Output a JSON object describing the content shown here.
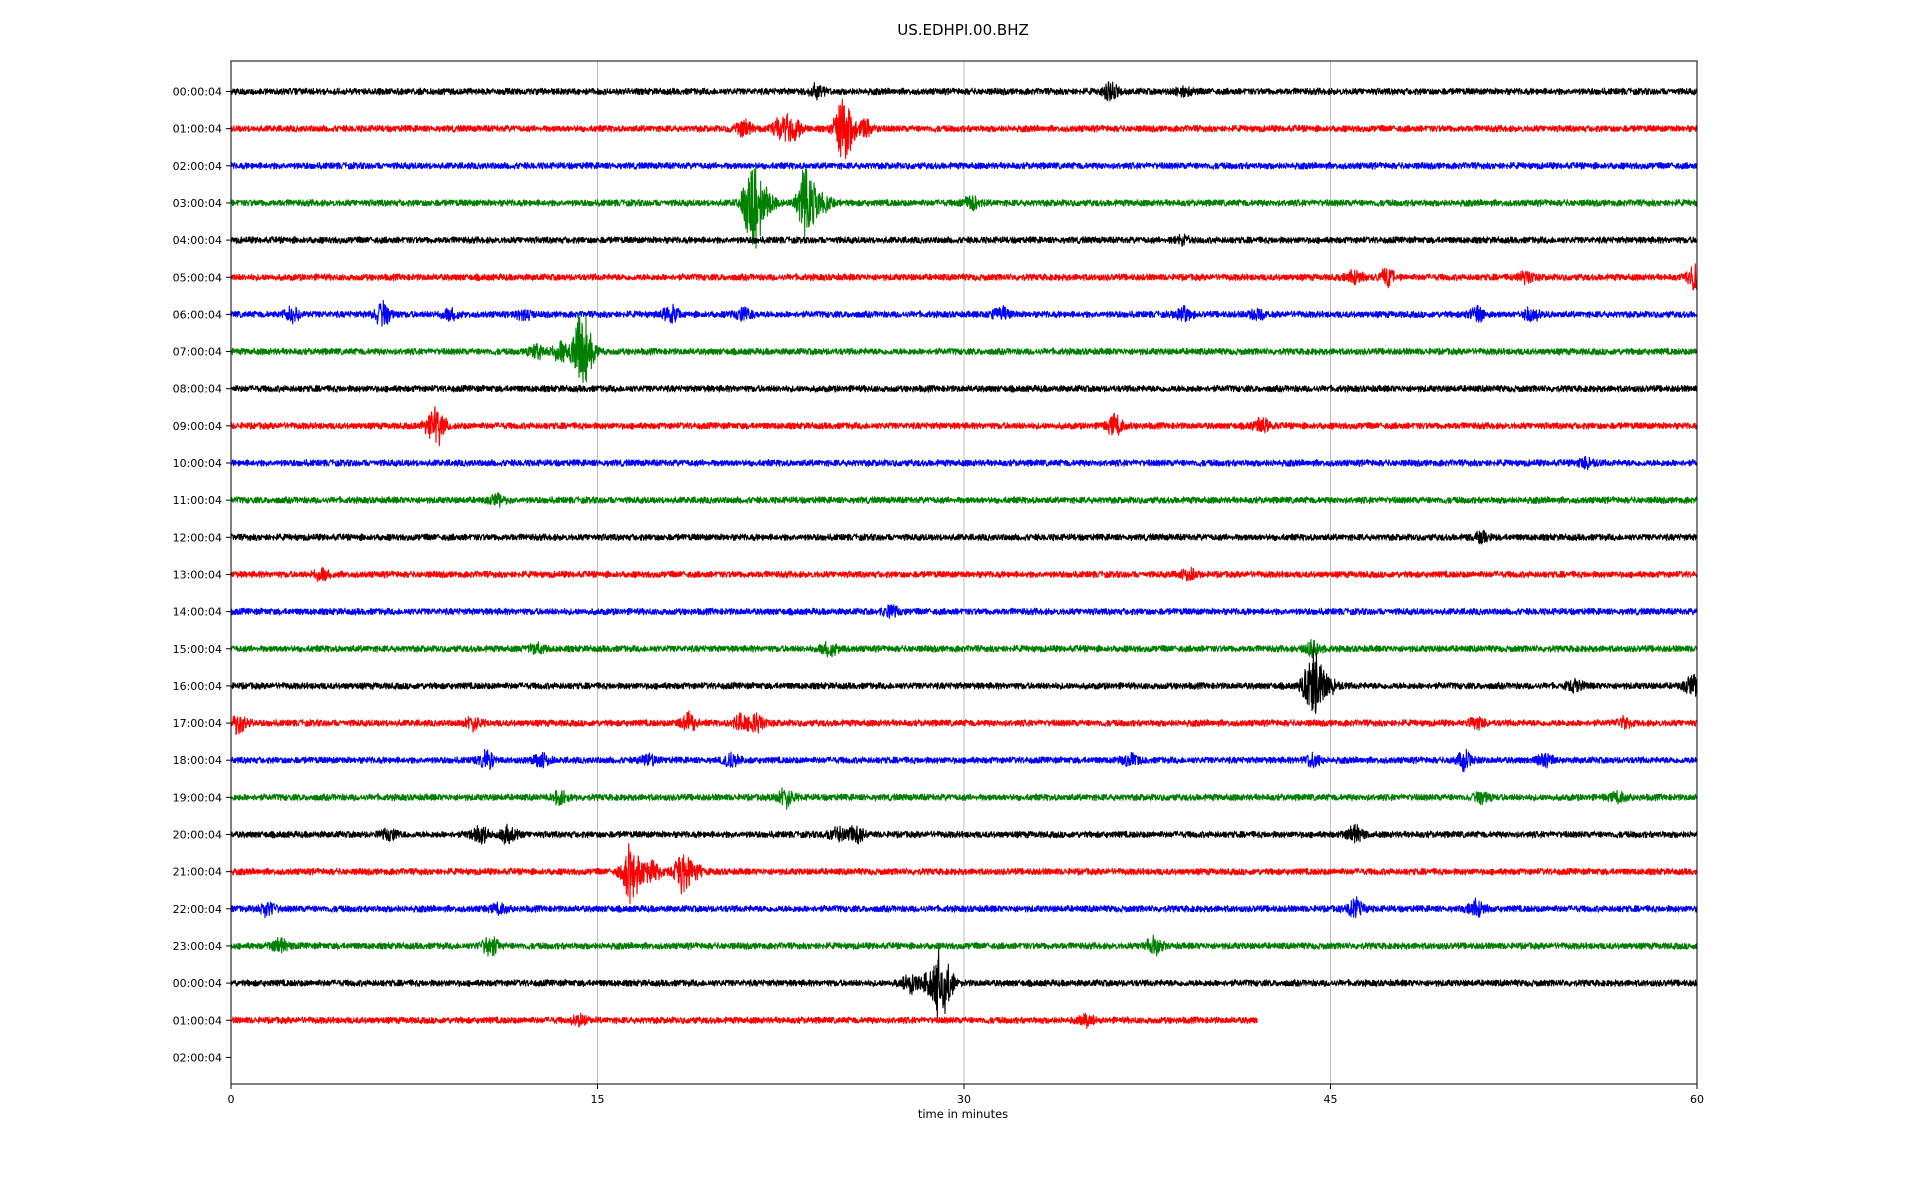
{
  "chart_data": {
    "type": "line",
    "title": "US.EDHPI.00.BHZ",
    "xlabel": "time in minutes",
    "ylabel": "",
    "xlim": [
      0,
      60
    ],
    "x_ticks": [
      "0",
      "15",
      "30",
      "45",
      "60"
    ],
    "row_labels": [
      "00:00:04",
      "01:00:04",
      "02:00:04",
      "03:00:04",
      "04:00:04",
      "05:00:04",
      "06:00:04",
      "07:00:04",
      "08:00:04",
      "09:00:04",
      "10:00:04",
      "11:00:04",
      "12:00:04",
      "13:00:04",
      "14:00:04",
      "15:00:04",
      "16:00:04",
      "17:00:04",
      "18:00:04",
      "19:00:04",
      "20:00:04",
      "21:00:04",
      "22:00:04",
      "23:00:04",
      "00:00:04",
      "01:00:04",
      "02:00:04"
    ],
    "grid": "vertical at major ticks",
    "series_colors": [
      "#000000",
      "#ff0000",
      "#0000ff",
      "#008000"
    ],
    "traces": [
      {
        "end": 60,
        "events": [
          [
            24,
            0.4
          ],
          [
            36,
            0.5
          ],
          [
            39,
            0.3
          ]
        ]
      },
      {
        "end": 60,
        "events": [
          [
            21,
            0.5
          ],
          [
            22.5,
            0.6
          ],
          [
            23,
            0.8
          ],
          [
            25,
            1.4
          ],
          [
            25.3,
            0.9
          ],
          [
            26,
            0.5
          ]
        ]
      },
      {
        "end": 60,
        "events": []
      },
      {
        "end": 60,
        "events": [
          [
            21.2,
            1.3
          ],
          [
            21.5,
            2.2
          ],
          [
            22,
            0.5
          ],
          [
            23.5,
            1.8
          ],
          [
            23.8,
            0.9
          ],
          [
            24.3,
            0.4
          ],
          [
            30.3,
            0.4
          ]
        ]
      },
      {
        "end": 60,
        "events": [
          [
            39,
            0.3
          ]
        ]
      },
      {
        "end": 60,
        "events": [
          [
            46,
            0.4
          ],
          [
            47.3,
            0.5
          ],
          [
            53,
            0.3
          ],
          [
            59.9,
            0.8
          ]
        ]
      },
      {
        "end": 60,
        "events": [
          [
            2.5,
            0.4
          ],
          [
            6.2,
            0.7
          ],
          [
            9,
            0.3
          ],
          [
            12,
            0.3
          ],
          [
            18,
            0.5
          ],
          [
            21,
            0.4
          ],
          [
            31.5,
            0.4
          ],
          [
            39,
            0.4
          ],
          [
            42,
            0.3
          ],
          [
            51,
            0.4
          ],
          [
            53.2,
            0.4
          ]
        ]
      },
      {
        "end": 60,
        "events": [
          [
            12.5,
            0.4
          ],
          [
            13.5,
            0.6
          ],
          [
            14.3,
            2.2
          ],
          [
            14.6,
            0.9
          ]
        ]
      },
      {
        "end": 60,
        "events": []
      },
      {
        "end": 60,
        "events": [
          [
            8.2,
            0.6
          ],
          [
            8.5,
            0.9
          ],
          [
            36.2,
            0.6
          ],
          [
            42.2,
            0.4
          ]
        ]
      },
      {
        "end": 60,
        "events": [
          [
            55.5,
            0.3
          ]
        ]
      },
      {
        "end": 60,
        "events": [
          [
            10.9,
            0.3
          ]
        ]
      },
      {
        "end": 60,
        "events": [
          [
            51.2,
            0.3
          ]
        ]
      },
      {
        "end": 60,
        "events": [
          [
            3.7,
            0.3
          ],
          [
            39.2,
            0.3
          ]
        ]
      },
      {
        "end": 60,
        "events": [
          [
            27,
            0.3
          ]
        ]
      },
      {
        "end": 60,
        "events": [
          [
            12.5,
            0.3
          ],
          [
            24.5,
            0.4
          ],
          [
            44.3,
            0.5
          ]
        ]
      },
      {
        "end": 60,
        "events": [
          [
            44.1,
            0.8
          ],
          [
            44.4,
            2.0
          ],
          [
            45,
            0.5
          ],
          [
            55,
            0.3
          ],
          [
            59.8,
            0.6
          ]
        ]
      },
      {
        "end": 60,
        "events": [
          [
            0.3,
            0.6
          ],
          [
            9.9,
            0.4
          ],
          [
            18.7,
            0.6
          ],
          [
            20.9,
            0.5
          ],
          [
            21.5,
            0.5
          ],
          [
            51,
            0.3
          ],
          [
            57,
            0.3
          ]
        ]
      },
      {
        "end": 60,
        "events": [
          [
            10.5,
            0.5
          ],
          [
            12.7,
            0.4
          ],
          [
            17.1,
            0.3
          ],
          [
            20.5,
            0.4
          ],
          [
            36.8,
            0.4
          ],
          [
            44.3,
            0.4
          ],
          [
            50.5,
            0.5
          ],
          [
            53.8,
            0.3
          ]
        ]
      },
      {
        "end": 60,
        "events": [
          [
            13.5,
            0.4
          ],
          [
            22.7,
            0.6
          ],
          [
            51.2,
            0.3
          ],
          [
            56.8,
            0.3
          ]
        ]
      },
      {
        "end": 60,
        "events": [
          [
            6.5,
            0.3
          ],
          [
            10.2,
            0.6
          ],
          [
            11.4,
            0.6
          ],
          [
            24.8,
            0.4
          ],
          [
            25.6,
            0.5
          ],
          [
            46,
            0.5
          ]
        ]
      },
      {
        "end": 60,
        "events": [
          [
            16.3,
            1.8
          ],
          [
            16.7,
            0.8
          ],
          [
            17.3,
            0.6
          ],
          [
            18.5,
            1.3
          ],
          [
            19,
            0.5
          ]
        ]
      },
      {
        "end": 60,
        "events": [
          [
            1.5,
            0.4
          ],
          [
            11,
            0.3
          ],
          [
            46,
            0.6
          ],
          [
            51,
            0.5
          ]
        ]
      },
      {
        "end": 60,
        "events": [
          [
            2,
            0.4
          ],
          [
            10.6,
            0.6
          ],
          [
            37.8,
            0.5
          ]
        ]
      },
      {
        "end": 60,
        "events": [
          [
            27.8,
            0.5
          ],
          [
            28.5,
            0.5
          ],
          [
            29,
            1.8
          ],
          [
            29.3,
            0.7
          ]
        ]
      },
      {
        "end": 42,
        "events": [
          [
            14.3,
            0.3
          ],
          [
            35,
            0.3
          ]
        ]
      },
      {
        "end": 0,
        "events": []
      }
    ]
  }
}
